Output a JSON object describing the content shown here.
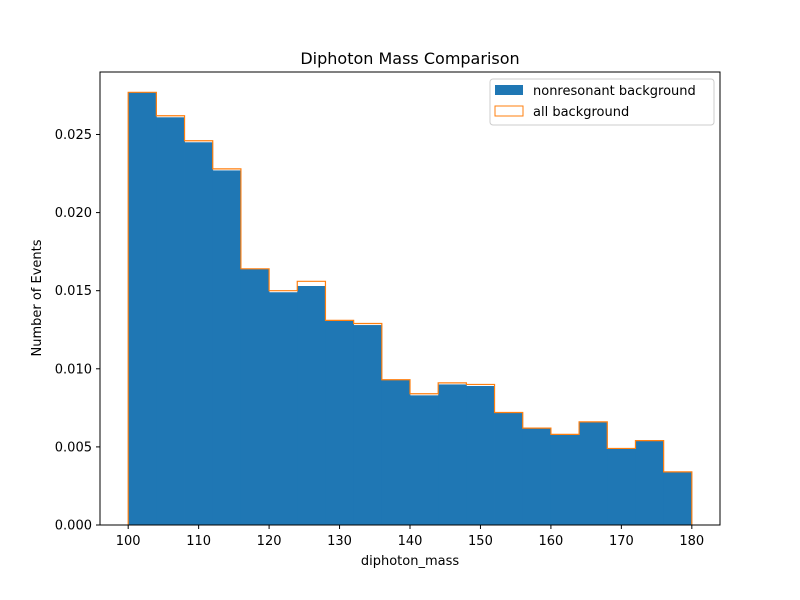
{
  "chart_data": {
    "type": "histogram",
    "title": "Diphoton Mass Comparison",
    "xlabel": "diphoton_mass",
    "ylabel": "Number of Events",
    "xlim": [
      96,
      184
    ],
    "ylim": [
      0,
      0.029
    ],
    "xticks": [
      100,
      110,
      120,
      130,
      140,
      150,
      160,
      170,
      180
    ],
    "yticks": [
      0.0,
      0.005,
      0.01,
      0.015,
      0.02,
      0.025
    ],
    "xtick_labels": [
      "100",
      "110",
      "120",
      "130",
      "140",
      "150",
      "160",
      "170",
      "180"
    ],
    "ytick_labels": [
      "0.000",
      "0.005",
      "0.010",
      "0.015",
      "0.020",
      "0.025"
    ],
    "bin_edges": [
      100,
      104,
      108,
      112,
      116,
      120,
      124,
      128,
      132,
      136,
      140,
      144,
      148,
      152,
      156,
      160,
      164,
      168,
      172,
      176,
      180
    ],
    "grid": false,
    "legend_position": "top-right",
    "series": [
      {
        "name": "nonresonant background",
        "style": "filled",
        "color": "#1f77b4",
        "values": [
          0.0277,
          0.0261,
          0.0245,
          0.0227,
          0.0164,
          0.0149,
          0.0153,
          0.0131,
          0.0128,
          0.0093,
          0.0083,
          0.009,
          0.0089,
          0.0072,
          0.0062,
          0.0058,
          0.0066,
          0.0049,
          0.0054,
          0.0034
        ]
      },
      {
        "name": "all background",
        "style": "step",
        "color": "#ff7f0e",
        "values": [
          0.0277,
          0.0262,
          0.0246,
          0.0228,
          0.0164,
          0.015,
          0.0156,
          0.0131,
          0.0129,
          0.0093,
          0.0084,
          0.0091,
          0.009,
          0.0072,
          0.0062,
          0.0058,
          0.0066,
          0.0049,
          0.0054,
          0.0034
        ]
      }
    ]
  }
}
